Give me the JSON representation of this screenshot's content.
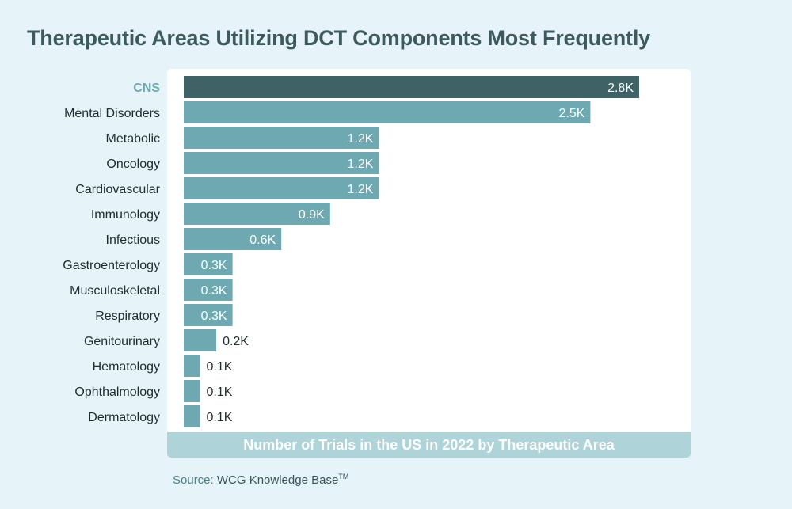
{
  "title": "Therapeutic Areas Utilizing DCT Components Most Frequently",
  "source": {
    "label": "Source:",
    "text": "WCG Knowledge Base",
    "mark": "TM"
  },
  "colors": {
    "background": "#e6f3f9",
    "highlight_bar": "#3e6266",
    "bar": "#6ea8b0",
    "highlight_label": "#6ea8b0",
    "label": "#1f2d2f",
    "footer_band": "#aed3d8"
  },
  "chart_data": {
    "type": "bar",
    "orientation": "horizontal",
    "xlabel": "Number of Trials in the US in 2022 by Therapeutic Area",
    "ylabel": "",
    "unit": "K",
    "xlim": [
      0,
      3.0
    ],
    "grid": false,
    "highlight": "CNS",
    "categories": [
      "CNS",
      "Mental Disorders",
      "Metabolic",
      "Oncology",
      "Cardiovascular",
      "Immunology",
      "Infectious",
      "Gastroenterology",
      "Musculoskeletal",
      "Respiratory",
      "Genitourinary",
      "Hematology",
      "Ophthalmology",
      "Dermatology"
    ],
    "values": [
      2.8,
      2.5,
      1.2,
      1.2,
      1.2,
      0.9,
      0.6,
      0.3,
      0.3,
      0.3,
      0.2,
      0.1,
      0.1,
      0.1
    ],
    "value_labels": [
      "2.8K",
      "2.5K",
      "1.2K",
      "1.2K",
      "1.2K",
      "0.9K",
      "0.6K",
      "0.3K",
      "0.3K",
      "0.3K",
      "0.2K",
      "0.1K",
      "0.1K",
      "0.1K"
    ]
  }
}
